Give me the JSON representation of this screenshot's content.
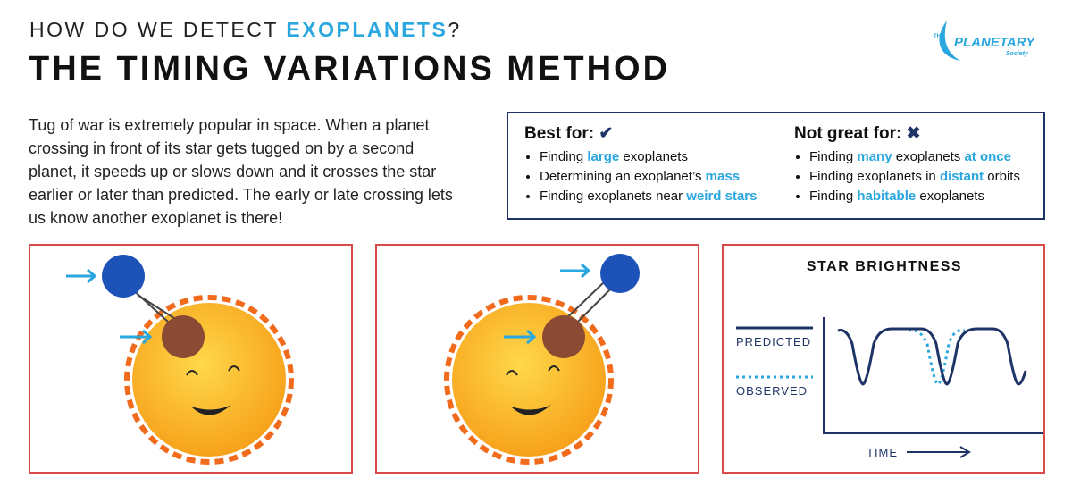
{
  "header": {
    "kicker": [
      "HOW DO WE DETECT ",
      "EXOPLANETS",
      "?"
    ],
    "title": "THE TIMING VARIATIONS METHOD"
  },
  "logo": {
    "the": "THE",
    "name": "PLANETARY",
    "society": "Society"
  },
  "intro": "Tug of war is extremely popular in space. When a planet crossing in front of its star gets tugged on by a second planet, it speeds up or slows down and it crosses the star earlier or later than predicted. The early or late crossing lets us know another exoplanet is there!",
  "best_for": {
    "heading": "Best for:",
    "items": [
      [
        "Finding ",
        "large",
        " exoplanets"
      ],
      [
        "Determining an exoplanet’s ",
        "mass"
      ],
      [
        "Finding exoplanets near ",
        "weird stars"
      ]
    ]
  },
  "not_great_for": {
    "heading": "Not great for:",
    "items": [
      [
        "Finding ",
        "many",
        " exoplanets ",
        "at once"
      ],
      [
        "Finding exoplanets in ",
        "distant",
        " orbits"
      ],
      [
        "Finding ",
        "habitable",
        " exoplanets"
      ]
    ]
  },
  "brightness_panel": {
    "title": "STAR BRIGHTNESS",
    "legend": [
      "PREDICTED",
      "OBSERVED"
    ],
    "x_label": "TIME"
  }
}
